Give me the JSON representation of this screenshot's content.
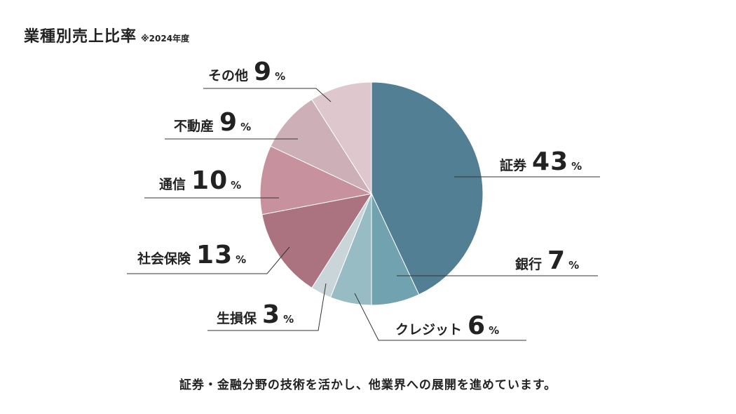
{
  "chart_data": {
    "type": "pie",
    "title": "業種別売上比率",
    "subtitle": "※2024年度",
    "unit": "%",
    "slices": [
      {
        "label": "証券",
        "value": 43,
        "color": "#537f94"
      },
      {
        "label": "銀行",
        "value": 7,
        "color": "#70a2b0"
      },
      {
        "label": "クレジット",
        "value": 6,
        "color": "#97bcc4"
      },
      {
        "label": "生損保",
        "value": 3,
        "color": "#c9d5d8"
      },
      {
        "label": "社会保険",
        "value": 13,
        "color": "#ab727f"
      },
      {
        "label": "通信",
        "value": 10,
        "color": "#c7929d"
      },
      {
        "label": "不動産",
        "value": 9,
        "color": "#cdb0b7"
      },
      {
        "label": "その他",
        "value": 9,
        "color": "#dfc8cd"
      }
    ]
  },
  "footer_note": "証券・金融分野の技術を活かし、他業界への展開を進めています。"
}
